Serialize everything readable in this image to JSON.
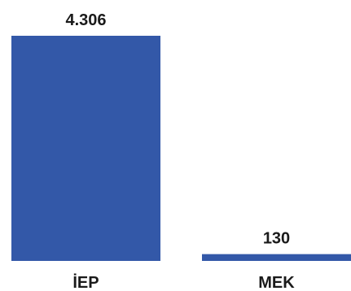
{
  "chart_data": {
    "type": "bar",
    "categories": [
      "İEP",
      "MEK"
    ],
    "values": [
      4306,
      130
    ],
    "value_labels": [
      "4.306",
      "130"
    ],
    "title": "",
    "xlabel": "",
    "ylabel": "",
    "ylim": [
      0,
      4306
    ],
    "grid": false,
    "legend": "none",
    "colors": {
      "bar": "#3358a8",
      "text": "#1a1a1a",
      "background": "#ffffff"
    }
  }
}
